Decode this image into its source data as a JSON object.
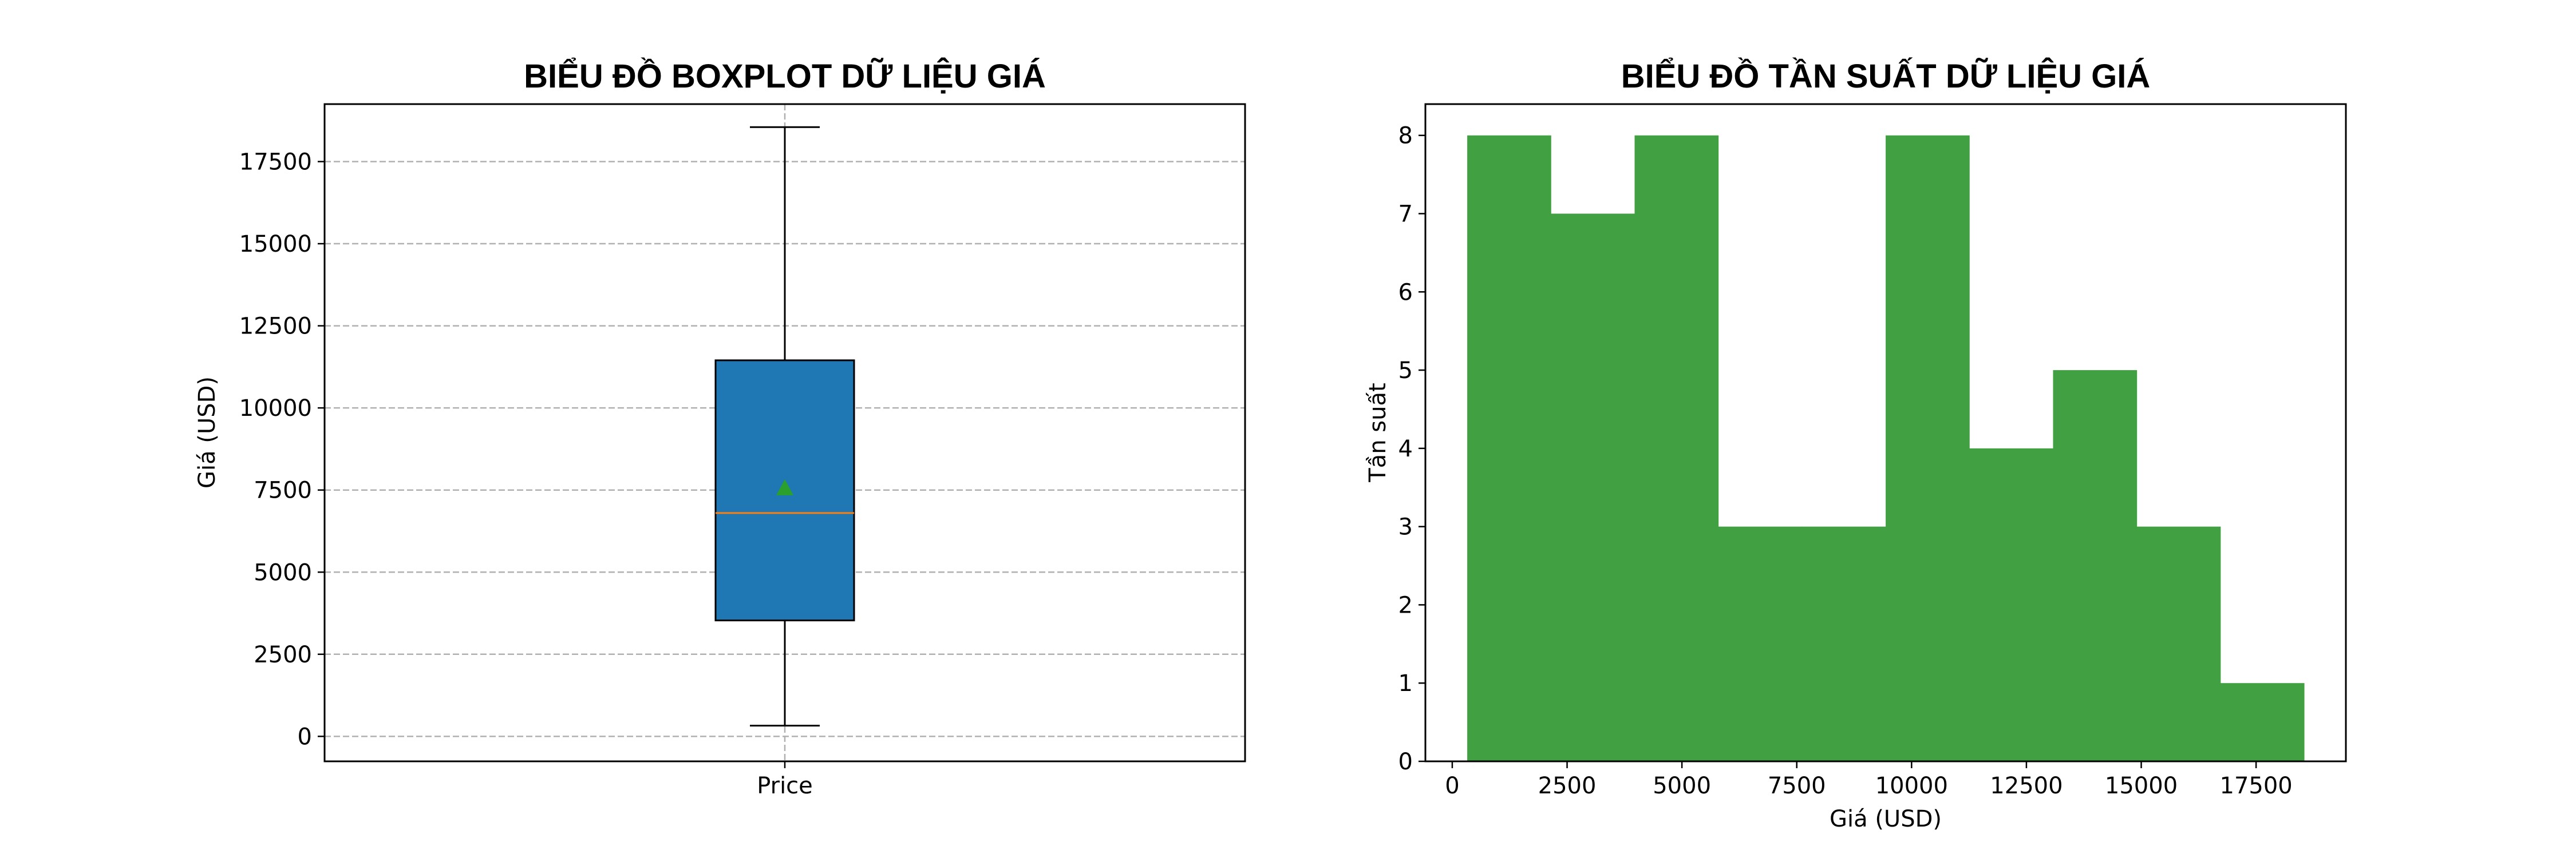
{
  "chart_data": [
    {
      "type": "boxplot",
      "title": "BIỂU ĐỒ BOXPLOT DỮ LIỆU GIÁ",
      "xlabel": "",
      "ylabel": "Giá (USD)",
      "categories": [
        "Price"
      ],
      "box": {
        "whisker_low": 326,
        "q1": 3530,
        "median": 6800,
        "q3": 11450,
        "whisker_high": 18550,
        "mean": 7550
      },
      "ylim": [
        -760,
        19250
      ],
      "yticks": [
        0,
        2500,
        5000,
        7500,
        10000,
        12500,
        15000,
        17500
      ],
      "ytick_labels": [
        "0",
        "2500",
        "5000",
        "7500",
        "10000",
        "12500",
        "15000",
        "17500"
      ],
      "grid": "y dashed",
      "colors": {
        "box": "#1f77b4",
        "median": "#ff7f0e",
        "mean": "#2ca02c",
        "grid": "#b0b0b0"
      }
    },
    {
      "type": "histogram",
      "title": "BIỂU ĐỒ TẦN SUẤT DỮ LIỆU GIÁ",
      "xlabel": "Giá (USD)",
      "ylabel": "Tần suất",
      "bin_edges": [
        326,
        2148,
        3970,
        5792,
        7614,
        9436,
        11258,
        13080,
        14902,
        16724,
        18546
      ],
      "counts": [
        8,
        7,
        8,
        3,
        3,
        8,
        4,
        5,
        3,
        1
      ],
      "xlim": [
        -585,
        19455
      ],
      "ylim": [
        0,
        8.4
      ],
      "xticks": [
        0,
        2500,
        5000,
        7500,
        10000,
        12500,
        15000,
        17500
      ],
      "xtick_labels": [
        "0",
        "2500",
        "5000",
        "7500",
        "10000",
        "12500",
        "15000",
        "17500"
      ],
      "yticks": [
        0,
        1,
        2,
        3,
        4,
        5,
        6,
        7,
        8
      ],
      "ytick_labels": [
        "0",
        "1",
        "2",
        "3",
        "4",
        "5",
        "6",
        "7",
        "8"
      ],
      "colors": {
        "bar": "#41a142"
      }
    }
  ]
}
